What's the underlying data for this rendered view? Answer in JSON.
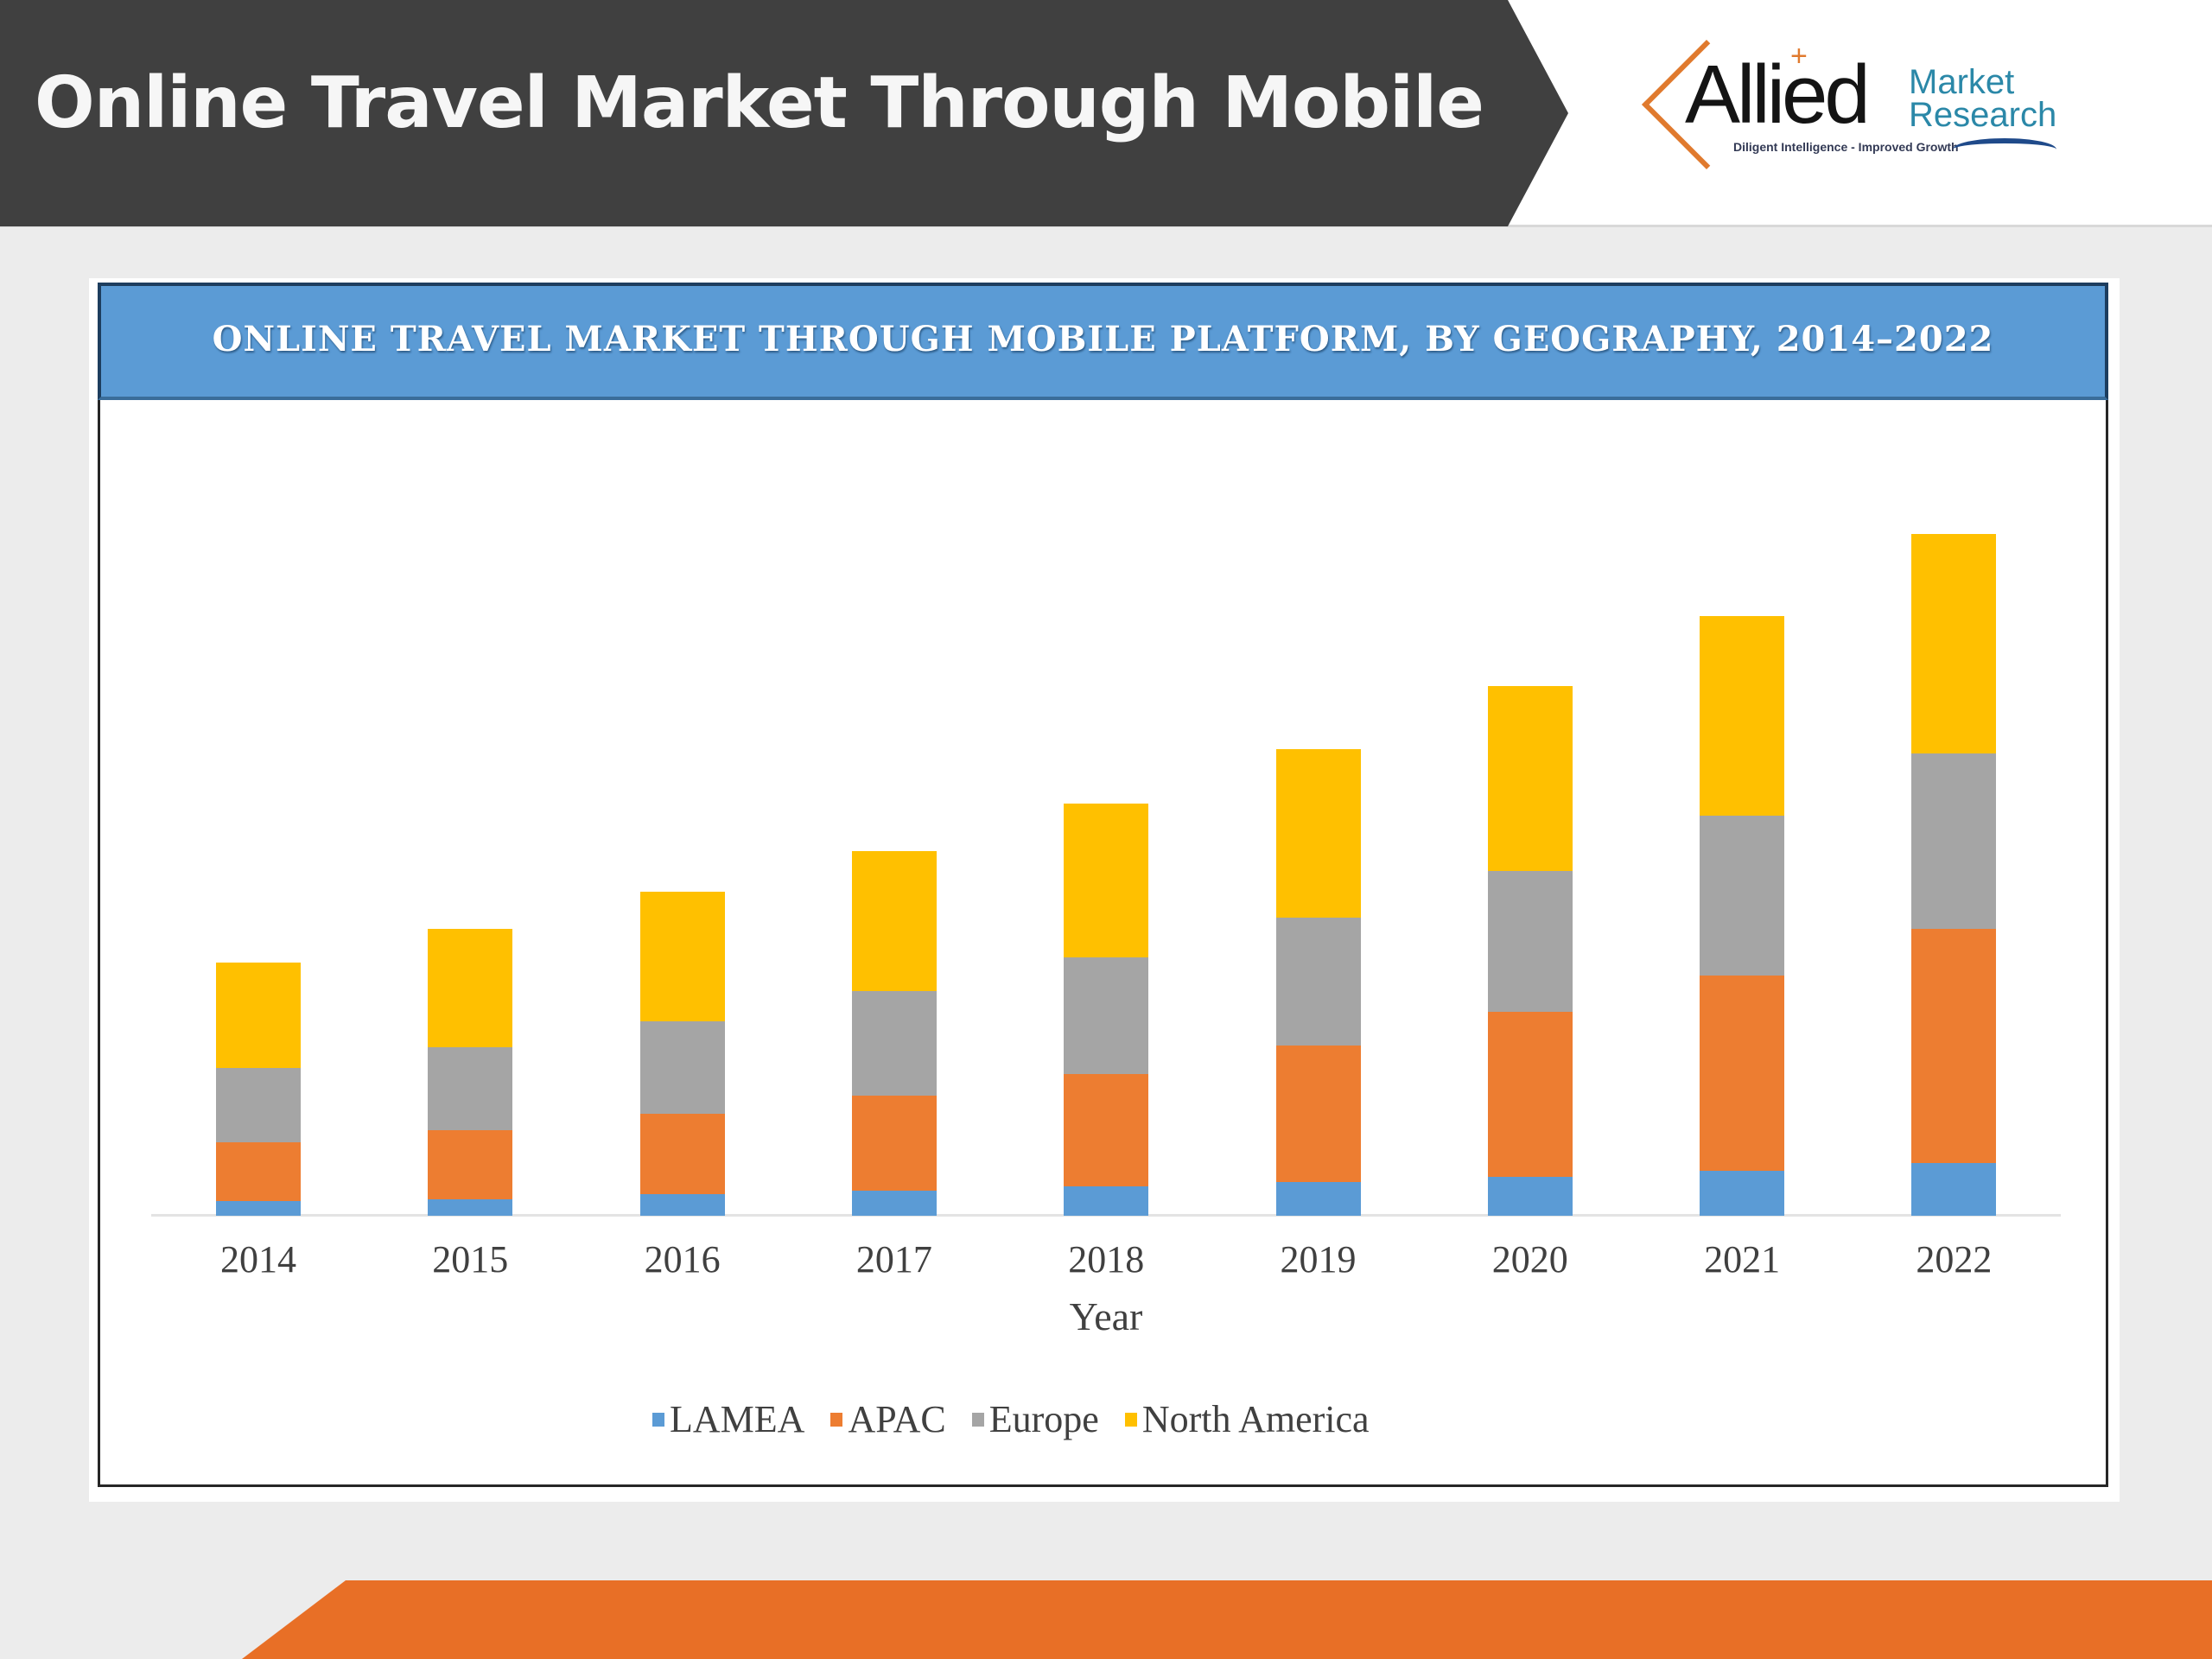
{
  "slide": {
    "title": "Online Travel Market Through Mobile",
    "logo": {
      "name": "Allied",
      "sub_line1": "Market",
      "sub_line2": "Research",
      "tagline": "Diligent Intelligence - Improved Growth",
      "plus": "+"
    }
  },
  "colors": {
    "title_band": "#404040",
    "chart_header": "#5b9bd5",
    "footer_band": "#e86f26",
    "LAMEA": "#5b9bd5",
    "APAC": "#ed7d31",
    "Europe": "#a5a5a5",
    "North America": "#ffc000"
  },
  "chart_data": {
    "type": "bar",
    "stacked": true,
    "title": "ONLINE TRAVEL MARKET THROUGH MOBILE PLATFORM, BY GEOGRAPHY, 2014–2022",
    "xlabel": "Year",
    "ylabel": "",
    "y_axis_visible": false,
    "grid": false,
    "legend_position": "bottom",
    "categories": [
      "2014",
      "2015",
      "2016",
      "2017",
      "2018",
      "2019",
      "2020",
      "2021",
      "2022"
    ],
    "series": [
      {
        "name": "LAMEA",
        "color": "#5b9bd5",
        "values": [
          17,
          19,
          25,
          29,
          34,
          39,
          45,
          52,
          61
        ]
      },
      {
        "name": "APAC",
        "color": "#ed7d31",
        "values": [
          68,
          80,
          93,
          110,
          130,
          158,
          191,
          226,
          271
        ]
      },
      {
        "name": "Europe",
        "color": "#a5a5a5",
        "values": [
          86,
          96,
          107,
          121,
          135,
          148,
          163,
          185,
          203
        ]
      },
      {
        "name": "North America",
        "color": "#ffc000",
        "values": [
          122,
          137,
          150,
          162,
          178,
          195,
          214,
          231,
          254
        ]
      }
    ],
    "units_note": "relative (no y-axis values shown)"
  }
}
